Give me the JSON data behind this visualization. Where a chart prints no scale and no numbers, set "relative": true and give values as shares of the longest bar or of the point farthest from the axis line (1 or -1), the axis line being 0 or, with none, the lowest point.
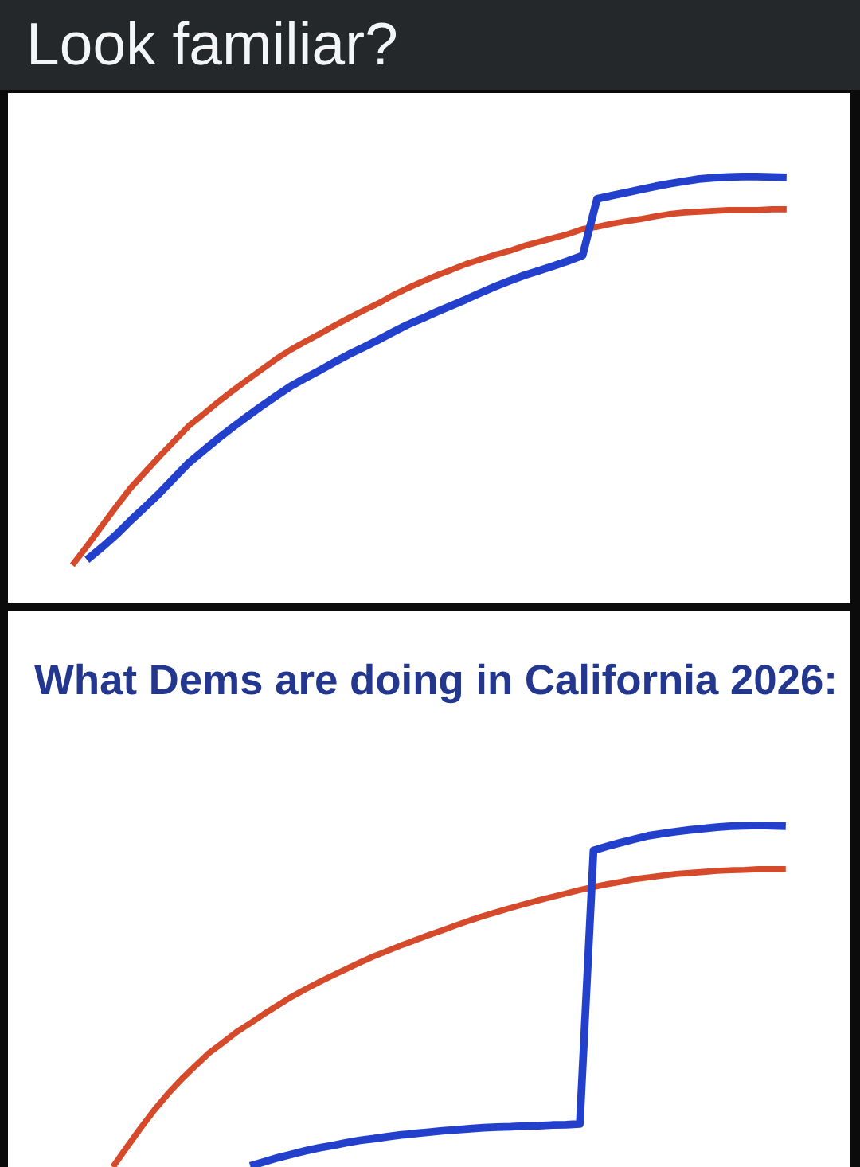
{
  "chart_data": [
    {
      "type": "line",
      "title": "Look familiar?",
      "relative": true,
      "tick_labels": false,
      "categories": [
        null,
        null,
        null,
        null,
        null,
        null,
        null,
        null,
        null,
        null,
        null,
        null,
        null,
        null,
        null,
        null,
        null,
        null,
        null,
        null,
        null,
        null,
        null,
        null,
        null,
        null,
        null,
        null,
        null,
        null,
        null,
        null,
        null,
        null,
        null,
        null,
        null,
        null,
        null,
        null,
        null,
        null,
        null,
        null,
        null,
        null,
        null,
        null,
        null,
        null
      ],
      "series": [
        {
          "color": "#d44a2a",
          "values": [
            0,
            0.049,
            0.1,
            0.15,
            0.199,
            0.24,
            0.281,
            0.32,
            0.359,
            0.389,
            0.42,
            0.449,
            0.477,
            0.504,
            0.531,
            0.555,
            0.576,
            0.596,
            0.617,
            0.637,
            0.656,
            0.674,
            0.695,
            0.713,
            0.73,
            0.746,
            0.76,
            0.775,
            0.787,
            0.799,
            0.809,
            0.822,
            0.832,
            0.842,
            0.852,
            0.865,
            0.871,
            0.879,
            0.885,
            0.891,
            0.898,
            0.904,
            0.908,
            0.91,
            0.912,
            0.914,
            0.914,
            0.914,
            0.916,
            0.916
          ]
        },
        {
          "color": "#2240cc",
          "values": [
            null,
            0.014,
            0.045,
            0.078,
            0.115,
            0.15,
            0.186,
            0.225,
            0.264,
            0.295,
            0.326,
            0.355,
            0.383,
            0.41,
            0.436,
            0.461,
            0.482,
            0.502,
            0.523,
            0.543,
            0.561,
            0.58,
            0.6,
            0.619,
            0.635,
            0.652,
            0.668,
            0.684,
            0.701,
            0.717,
            0.732,
            0.746,
            0.758,
            0.77,
            0.783,
            0.797,
            0.943,
            0.951,
            0.959,
            0.967,
            0.975,
            0.982,
            0.988,
            0.994,
            0.997,
            0.999,
            1.0,
            1.0,
            0.999,
            0.998
          ]
        }
      ]
    },
    {
      "type": "line",
      "title": "What Dems are doing in California 2026:",
      "relative": true,
      "tick_labels": false,
      "categories": [
        null,
        null,
        null,
        null,
        null,
        null,
        null,
        null,
        null,
        null,
        null,
        null,
        null,
        null,
        null,
        null,
        null,
        null,
        null,
        null,
        null,
        null,
        null,
        null,
        null,
        null,
        null,
        null,
        null,
        null,
        null,
        null,
        null,
        null,
        null,
        null,
        null,
        null,
        null,
        null,
        null,
        null,
        null,
        null,
        null,
        null,
        null,
        null,
        null,
        null
      ],
      "series": [
        {
          "color": "#d44a2a",
          "values": [
            0,
            0.057,
            0.113,
            0.166,
            0.214,
            0.257,
            0.296,
            0.334,
            0.364,
            0.395,
            0.421,
            0.448,
            0.473,
            0.498,
            0.52,
            0.541,
            0.561,
            0.58,
            0.599,
            0.617,
            0.633,
            0.649,
            0.664,
            0.679,
            0.693,
            0.708,
            0.722,
            0.735,
            0.747,
            0.759,
            0.77,
            0.781,
            0.791,
            0.801,
            0.811,
            0.82,
            0.828,
            0.835,
            0.843,
            0.848,
            0.853,
            0.858,
            0.861,
            0.864,
            0.867,
            0.869,
            0.87,
            0.872,
            0.872,
            0.872
          ]
        },
        {
          "color": "#2240cc",
          "values": [
            null,
            null,
            null,
            null,
            null,
            null,
            null,
            null,
            null,
            null,
            0.003,
            0.015,
            0.027,
            0.037,
            0.047,
            0.056,
            0.063,
            0.071,
            0.078,
            0.083,
            0.089,
            0.094,
            0.098,
            0.102,
            0.106,
            0.109,
            0.112,
            0.115,
            0.117,
            0.118,
            0.12,
            0.121,
            0.123,
            0.124,
            0.126,
            0.927,
            0.939,
            0.95,
            0.96,
            0.97,
            0.976,
            0.982,
            0.987,
            0.991,
            0.995,
            0.998,
            0.999,
            1.0,
            0.999,
            0.998
          ]
        }
      ]
    }
  ]
}
